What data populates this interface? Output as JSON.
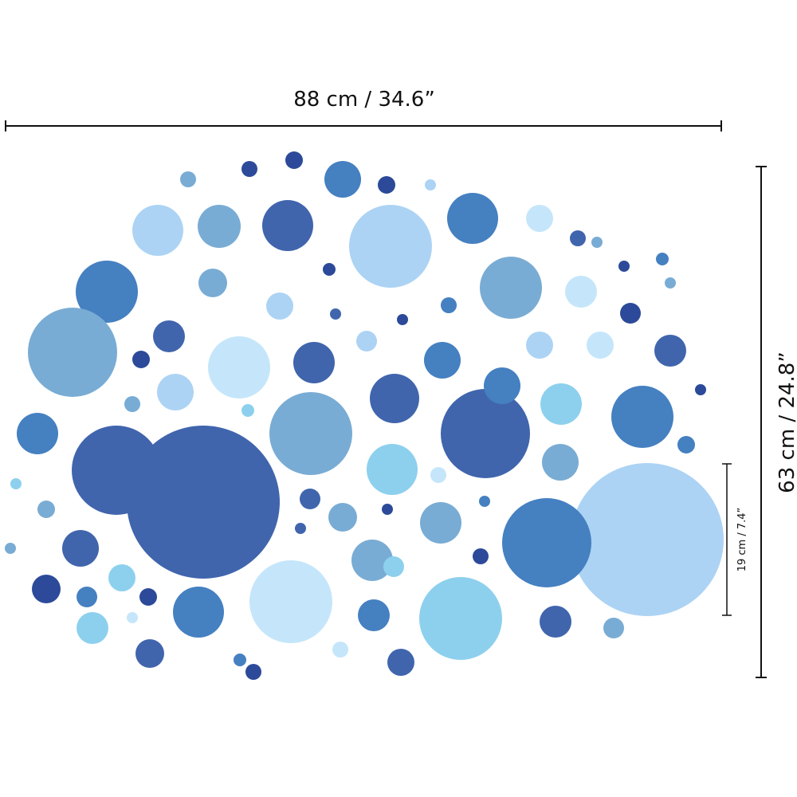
{
  "dimensions": {
    "width_label": "88 cm / 34.6”",
    "height_label": "63 cm / 24.8”",
    "large_dot_label": "19 cm / 7.4”"
  },
  "palette": {
    "navy": "#2c4a99",
    "dark": "#4065ad",
    "mid": "#4580c1",
    "steel": "#79acd4",
    "light": "#acd3f4",
    "pale": "#c5e6fa",
    "cyan": "#8dd0ee",
    "line": "#111111",
    "background": "#ffffff"
  }
}
